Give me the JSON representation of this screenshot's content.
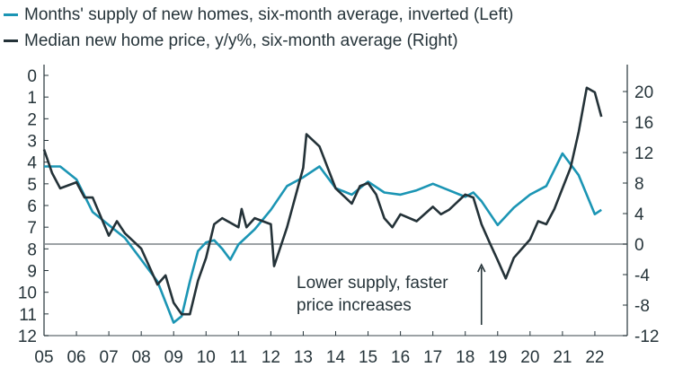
{
  "chart_data": {
    "type": "line",
    "title": "",
    "xlim": [
      2005,
      2023
    ],
    "x_ticks": [
      "05",
      "06",
      "07",
      "08",
      "09",
      "10",
      "11",
      "12",
      "13",
      "14",
      "15",
      "16",
      "17",
      "18",
      "19",
      "20",
      "21",
      "22"
    ],
    "y_left": {
      "ylim": [
        0,
        12
      ],
      "inverted": true,
      "ticks": [
        "0",
        "1",
        "2",
        "3",
        "4",
        "5",
        "6",
        "7",
        "8",
        "9",
        "10",
        "11",
        "12"
      ]
    },
    "y_right": {
      "ylim": [
        -12,
        22
      ],
      "ticks": [
        "20",
        "16",
        "12",
        "8",
        "4",
        "0",
        "-4",
        "-8",
        "-12"
      ]
    },
    "zero_line_right": 0,
    "grid": false,
    "legend_placement": "top-left",
    "annotation": {
      "lines": [
        "Lower supply, faster",
        "price increases"
      ],
      "arrow_x": 2018.5
    },
    "series": [
      {
        "name": "Months' supply of new homes, six-month average, inverted (Left)",
        "axis": "left",
        "color": "#1b95b4",
        "x": [
          2005.0,
          2005.5,
          2006.0,
          2006.5,
          2007.0,
          2007.5,
          2008.0,
          2008.5,
          2009.0,
          2009.25,
          2009.5,
          2009.75,
          2010.0,
          2010.25,
          2010.5,
          2010.75,
          2011.0,
          2011.5,
          2012.0,
          2012.5,
          2013.0,
          2013.5,
          2014.0,
          2014.5,
          2015.0,
          2015.5,
          2016.0,
          2016.5,
          2017.0,
          2017.5,
          2018.0,
          2018.25,
          2018.5,
          2019.0,
          2019.5,
          2020.0,
          2020.5,
          2021.0,
          2021.5,
          2022.0,
          2022.2
        ],
        "y": [
          4.2,
          4.2,
          4.8,
          6.3,
          6.9,
          7.5,
          8.5,
          9.5,
          11.4,
          11.1,
          9.5,
          8.1,
          7.7,
          7.6,
          8.0,
          8.5,
          7.8,
          7.1,
          6.2,
          5.1,
          4.7,
          4.2,
          5.2,
          5.5,
          4.9,
          5.4,
          5.5,
          5.3,
          5.0,
          5.3,
          5.6,
          5.4,
          5.8,
          6.9,
          6.1,
          5.5,
          5.1,
          3.6,
          4.6,
          6.4,
          6.2
        ]
      },
      {
        "name": "Median new home price, y/y%, six-month average (Right)",
        "axis": "right",
        "color": "#243238",
        "x": [
          2005.0,
          2005.25,
          2005.5,
          2006.0,
          2006.25,
          2006.5,
          2007.0,
          2007.25,
          2007.5,
          2008.0,
          2008.5,
          2008.75,
          2009.0,
          2009.25,
          2009.5,
          2009.75,
          2010.0,
          2010.25,
          2010.5,
          2011.0,
          2011.1,
          2011.25,
          2011.5,
          2012.0,
          2012.1,
          2012.5,
          2013.0,
          2013.1,
          2013.5,
          2014.0,
          2014.5,
          2014.75,
          2015.0,
          2015.25,
          2015.5,
          2015.75,
          2016.0,
          2016.5,
          2017.0,
          2017.25,
          2017.5,
          2018.0,
          2018.25,
          2018.5,
          2018.75,
          2019.0,
          2019.25,
          2019.5,
          2019.75,
          2020.0,
          2020.25,
          2020.5,
          2020.75,
          2021.0,
          2021.25,
          2021.5,
          2021.75,
          2022.0,
          2022.2
        ],
        "y": [
          12.4,
          9.3,
          7.3,
          8.1,
          6.1,
          6.1,
          1.1,
          3.0,
          1.4,
          -0.6,
          -5.3,
          -4.1,
          -7.7,
          -9.2,
          -9.2,
          -4.8,
          -1.8,
          2.6,
          3.4,
          2.2,
          4.6,
          2.2,
          3.4,
          2.6,
          -2.9,
          2.2,
          10.0,
          14.4,
          12.8,
          7.3,
          5.3,
          7.6,
          8.0,
          6.5,
          3.4,
          2.2,
          3.9,
          3.0,
          4.9,
          3.9,
          4.5,
          6.5,
          6.1,
          2.6,
          0.2,
          -2.1,
          -4.5,
          -1.8,
          -0.6,
          0.6,
          3.0,
          2.6,
          4.6,
          7.3,
          10.0,
          14.7,
          20.5,
          19.9,
          16.7
        ]
      }
    ]
  }
}
